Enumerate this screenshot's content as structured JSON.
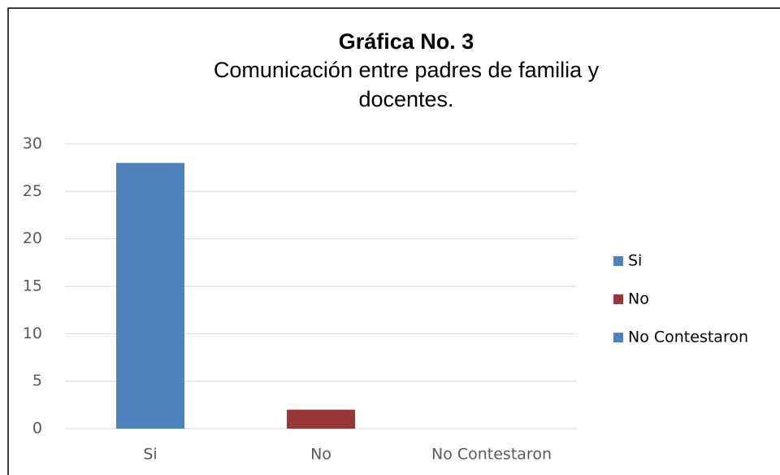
{
  "chart_data": {
    "type": "bar",
    "title": "Gráfica No. 3",
    "subtitle": "Comunicación entre padres de familia y docentes.",
    "categories": [
      "Si",
      "No",
      "No Contestaron"
    ],
    "values": [
      28,
      2,
      0
    ],
    "colors": [
      "#4f81bd",
      "#953735",
      "#4f81bd"
    ],
    "ylim": [
      0,
      30
    ],
    "yticks": [
      0,
      5,
      10,
      15,
      20,
      25,
      30
    ],
    "grid": true,
    "legend": "right"
  }
}
